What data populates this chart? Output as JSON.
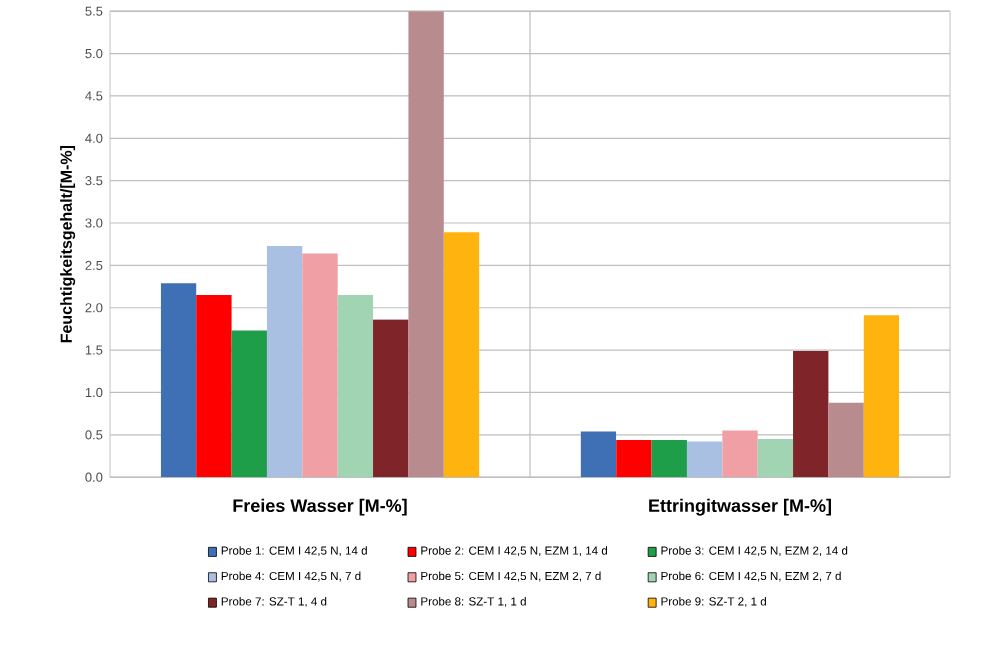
{
  "chart_data": {
    "type": "bar",
    "ylabel": "Feuchtigkeitsgehalt/[M-%]",
    "categories": [
      "Freies Wasser [M-%]",
      "Ettringitwasser [M-%]"
    ],
    "ylim": [
      0,
      5.5
    ],
    "yticks": [
      {
        "value": 0,
        "label": "0.0"
      },
      {
        "value": 0.5,
        "label": "0.5"
      },
      {
        "value": 1,
        "label": "1.0"
      },
      {
        "value": 1.5,
        "label": "1.5"
      },
      {
        "value": 2,
        "label": "2.0"
      },
      {
        "value": 2.5,
        "label": "2.5"
      },
      {
        "value": 3,
        "label": "3.0"
      },
      {
        "value": 3.5,
        "label": "3.5"
      },
      {
        "value": 4,
        "label": "4.0"
      },
      {
        "value": 4.5,
        "label": "4.5"
      },
      {
        "value": 5,
        "label": "5.0"
      },
      {
        "value": 5.5,
        "label": "5.5"
      }
    ],
    "grid": true,
    "legend": "bottom",
    "series": [
      {
        "name": "Probe 1: CEM I 42,5 N, 14 d",
        "color": "#3f6fb5",
        "values": [
          2.29,
          0.54
        ]
      },
      {
        "name": "Probe 2: CEM I 42,5 N, EZM 1, 14 d",
        "color": "#ff0000",
        "values": [
          2.15,
          0.44
        ]
      },
      {
        "name": "Probe 3: CEM I 42,5 N, EZM 2, 14 d",
        "color": "#1e9e48",
        "values": [
          1.73,
          0.44
        ]
      },
      {
        "name": "Probe 4: CEM I 42,5 N, 7 d",
        "color": "#a9c0e2",
        "values": [
          2.73,
          0.42
        ]
      },
      {
        "name": "Probe 5: CEM I 42,5 N, EZM 2, 7 d",
        "color": "#f0a0a4",
        "values": [
          2.64,
          0.55
        ]
      },
      {
        "name": "Probe 6: CEM I 42,5 N, EZM 2, 7 d",
        "color": "#a0d4b2",
        "values": [
          2.15,
          0.45
        ]
      },
      {
        "name": "Probe 7: SZ-T 1, 4 d",
        "color": "#7f2428",
        "values": [
          1.86,
          1.49
        ]
      },
      {
        "name": "Probe 8: SZ-T 1, 1 d",
        "color": "#b88c8e",
        "values": [
          5.5,
          0.88
        ]
      },
      {
        "name": "Probe 9: SZ-T 2, 1 d",
        "color": "#ffb30f",
        "values": [
          2.89,
          1.91
        ]
      }
    ]
  }
}
